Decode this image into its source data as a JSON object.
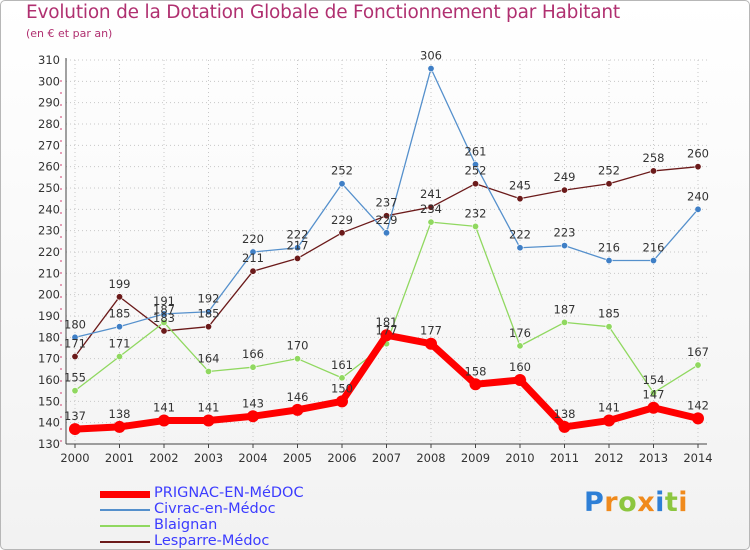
{
  "header": {
    "title": "Evolution de la Dotation Globale de Fonctionnement par Habitant",
    "subtitle": "(en € et par an)"
  },
  "logo": {
    "text": "Proxiti"
  },
  "colors": {
    "title": "#b03070",
    "legend_text": "#3c3cff",
    "grid": "#c8c8c8",
    "prignac": "#ff0000",
    "civrac": "#5590cc",
    "blaignan": "#90d860",
    "lesparre": "#6b1a1a"
  },
  "chart_data": {
    "type": "line",
    "title": "Evolution de la Dotation Globale de Fonctionnement par Habitant",
    "subtitle": "(en € et par an)",
    "x": [
      "2000",
      "2001",
      "2002",
      "2003",
      "2004",
      "2005",
      "2006",
      "2007",
      "2008",
      "2009",
      "2010",
      "2011",
      "2012",
      "2013",
      "2014"
    ],
    "ylim": [
      130,
      310
    ],
    "yticks": [
      130,
      140,
      150,
      160,
      170,
      180,
      190,
      200,
      210,
      220,
      230,
      240,
      250,
      260,
      270,
      280,
      290,
      300,
      310
    ],
    "grid": true,
    "legend_position": "bottom-left",
    "series": [
      {
        "name": "Lesparre-Médoc",
        "color": "#6b1a1a",
        "marker": "#6b1a1a",
        "width": 1.3,
        "values": [
          171,
          199,
          183,
          185,
          211,
          217,
          229,
          237,
          241,
          252,
          245,
          249,
          252,
          258,
          260
        ]
      },
      {
        "name": "Blaignan",
        "color": "#90d860",
        "marker": "#90d860",
        "width": 1.3,
        "values": [
          155,
          171,
          187,
          164,
          166,
          170,
          161,
          177,
          234,
          232,
          176,
          187,
          185,
          154,
          167
        ]
      },
      {
        "name": "Civrac-en-Médoc",
        "color": "#5590cc",
        "marker": "#3f7fc6",
        "width": 1.3,
        "values": [
          180,
          185,
          191,
          192,
          220,
          222,
          252,
          229,
          306,
          261,
          222,
          223,
          216,
          216,
          240
        ]
      },
      {
        "name": "PRIGNAC-EN-MéDOC",
        "color": "#ff0000",
        "marker": "#ff0000",
        "width": 7,
        "values": [
          137,
          138,
          141,
          141,
          143,
          146,
          150,
          181,
          177,
          158,
          160,
          138,
          141,
          147,
          142
        ]
      }
    ]
  },
  "legend": {
    "items": [
      {
        "label": "PRIGNAC-EN-MéDOC",
        "color": "#ff0000",
        "thickness": 7
      },
      {
        "label": "Civrac-en-Médoc",
        "color": "#5590cc",
        "thickness": 2
      },
      {
        "label": "Blaignan",
        "color": "#90d860",
        "thickness": 2
      },
      {
        "label": "Lesparre-Médoc",
        "color": "#6b1a1a",
        "thickness": 2
      }
    ]
  }
}
